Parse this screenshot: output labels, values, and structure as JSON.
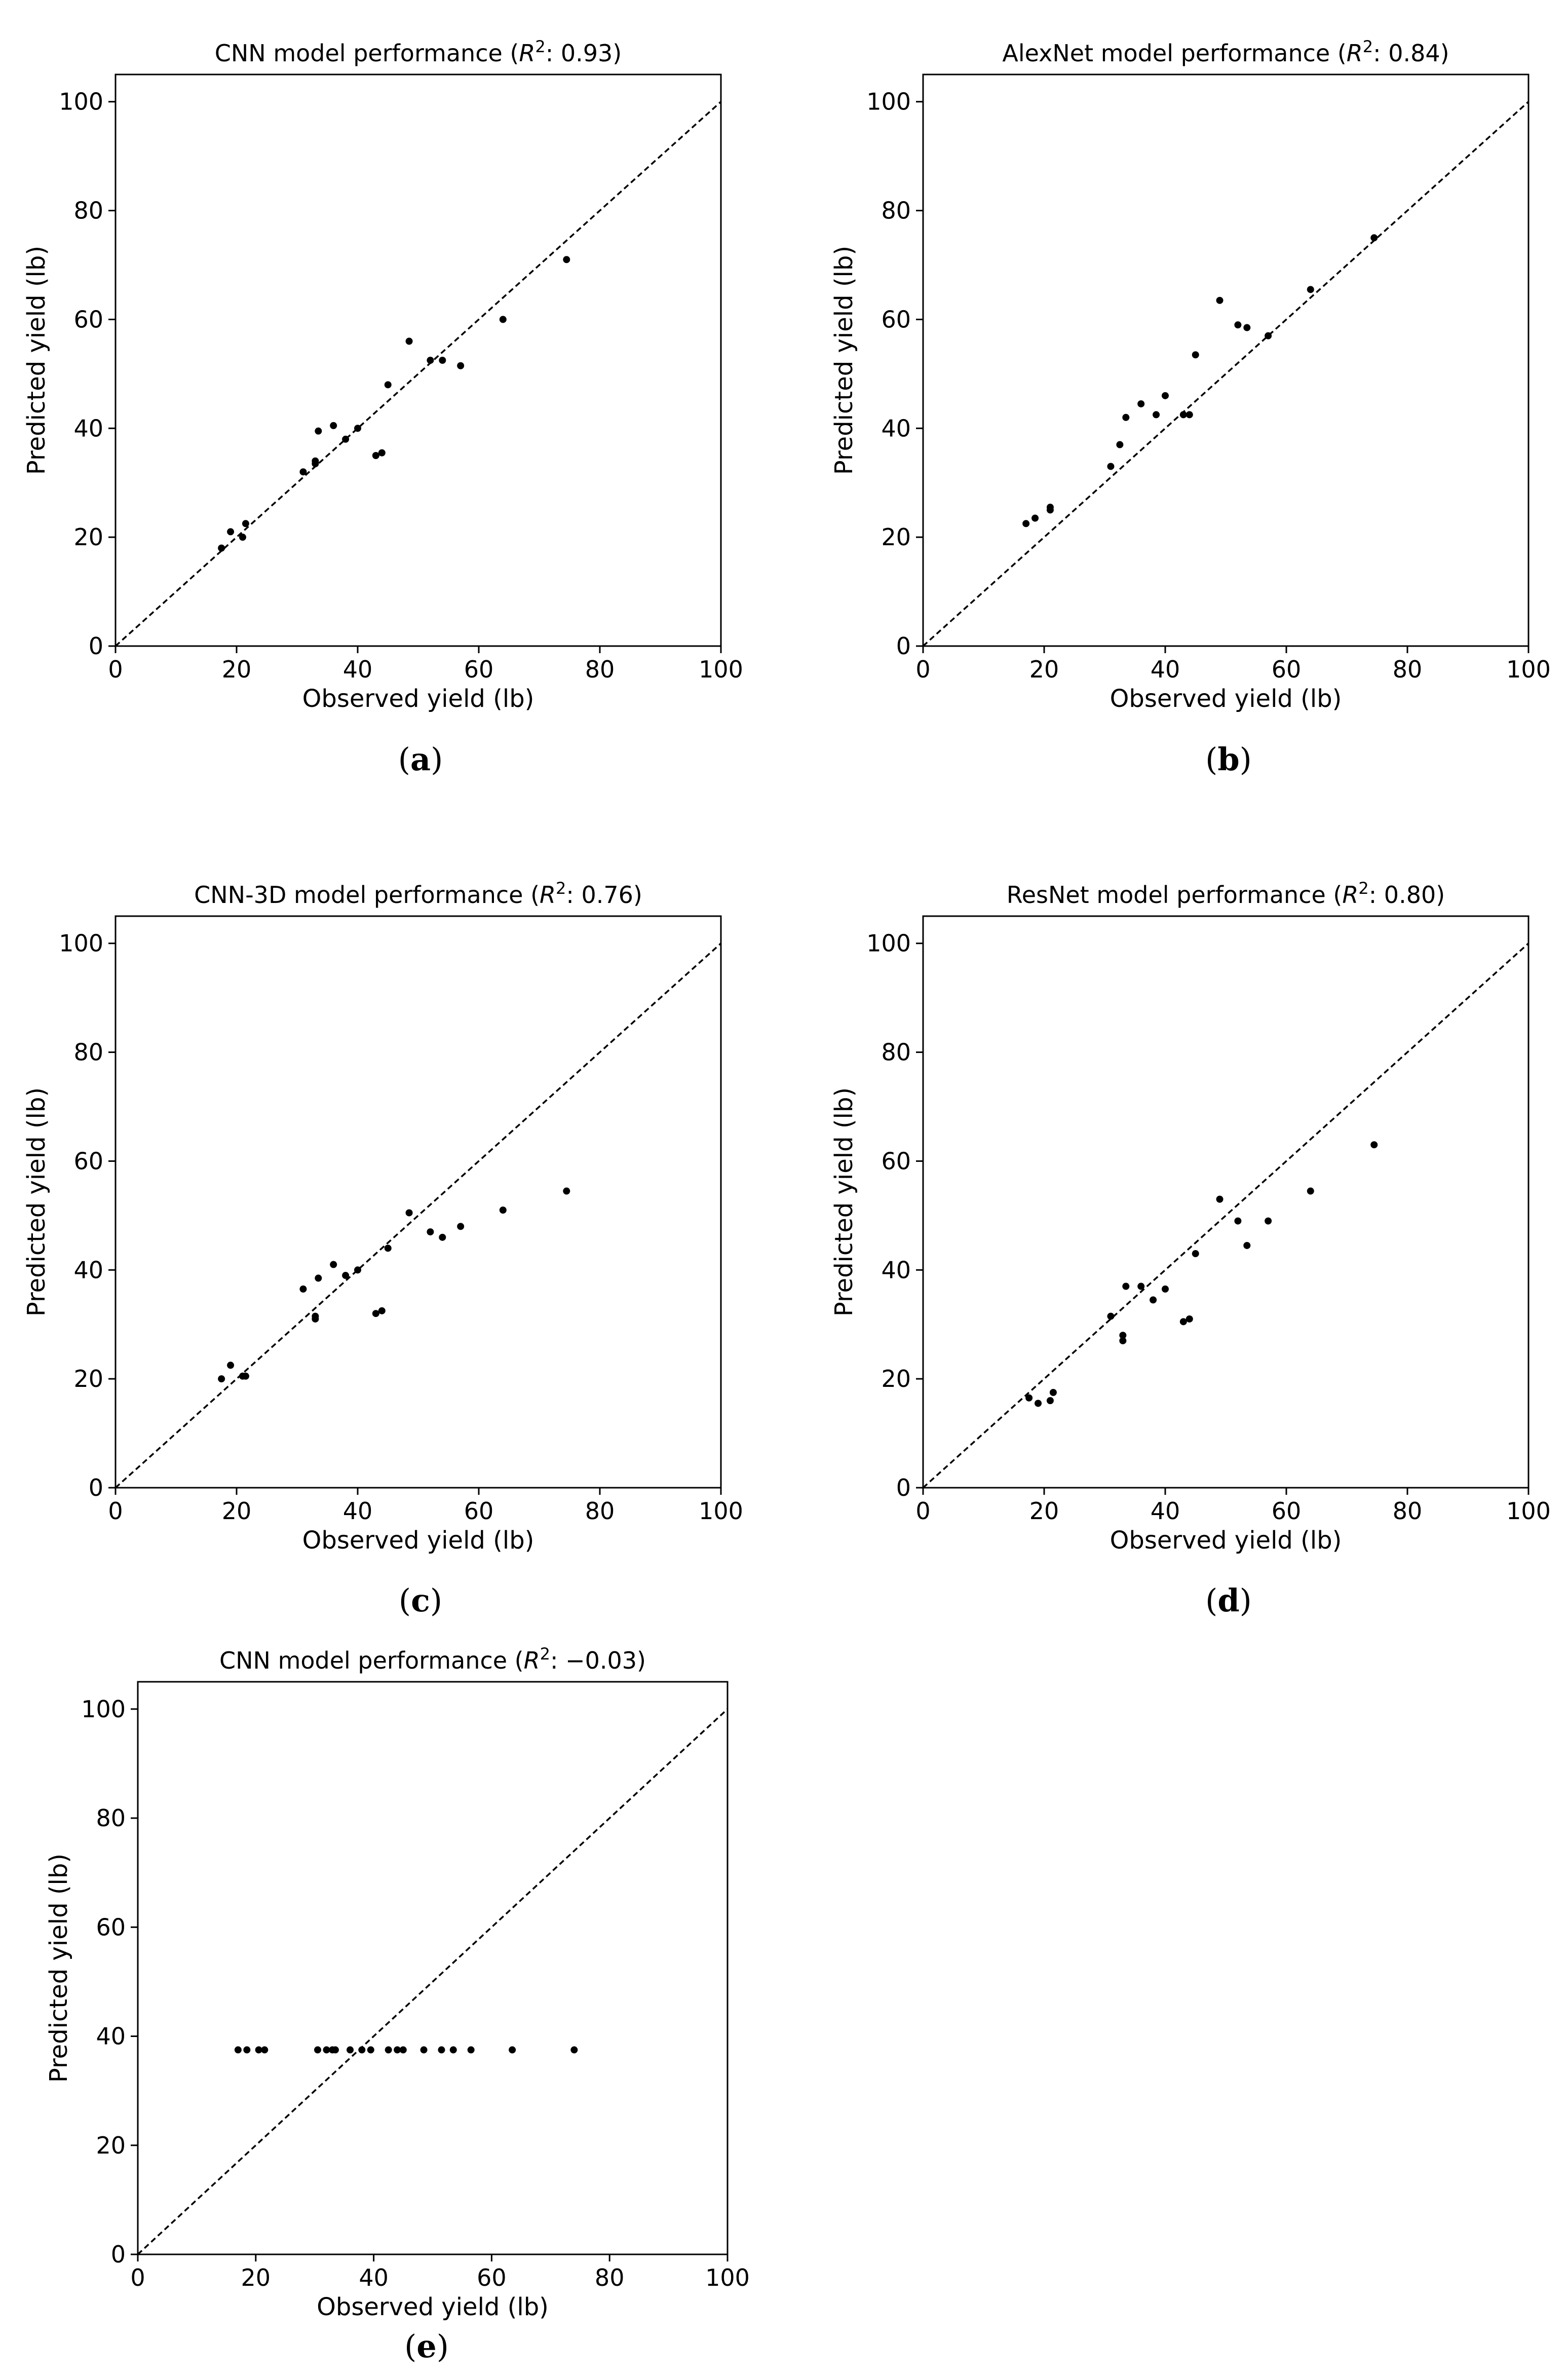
{
  "figure": {
    "captions": [
      "(a)",
      "(b)",
      "(c)",
      "(d)",
      "(e)"
    ]
  },
  "chart_data": [
    {
      "type": "scatter",
      "title": "CNN model performance (R²: 0.93)",
      "title_parts": {
        "model": "CNN",
        "r2": "0.93"
      },
      "xlabel": "Observed yield (lb)",
      "ylabel": "Predicted yield (lb)",
      "xlim": [
        0,
        100
      ],
      "ylim": [
        0,
        105
      ],
      "xticks": [
        0,
        20,
        40,
        60,
        80,
        100
      ],
      "yticks": [
        0,
        20,
        40,
        60,
        80,
        100
      ],
      "reference_line": "y = x (dashed)",
      "grid": false,
      "caption": "(a)",
      "x": [
        17.5,
        19,
        21,
        21.5,
        31,
        33,
        33,
        33.5,
        36,
        38,
        40,
        43,
        44,
        45,
        48.5,
        52,
        54,
        57,
        64,
        74.5
      ],
      "y": [
        18,
        21,
        20,
        22.5,
        32,
        33.5,
        34,
        39.5,
        40.5,
        38,
        40,
        35,
        35.5,
        48,
        56,
        52.5,
        52.5,
        51.5,
        60,
        71
      ]
    },
    {
      "type": "scatter",
      "title": "AlexNet model performance (R²: 0.84)",
      "title_parts": {
        "model": "AlexNet",
        "r2": "0.84"
      },
      "xlabel": "Observed yield (lb)",
      "ylabel": "Predicted yield (lb)",
      "xlim": [
        0,
        100
      ],
      "ylim": [
        0,
        105
      ],
      "xticks": [
        0,
        20,
        40,
        60,
        80,
        100
      ],
      "yticks": [
        0,
        20,
        40,
        60,
        80,
        100
      ],
      "reference_line": "y = x (dashed)",
      "grid": false,
      "caption": "(b)",
      "x": [
        17,
        18.5,
        21,
        21,
        31,
        32.5,
        33.5,
        36,
        38.5,
        40,
        43,
        44,
        45,
        49,
        52,
        53.5,
        57,
        64,
        74.5
      ],
      "y": [
        22.5,
        23.5,
        25,
        25.5,
        33,
        37,
        42,
        44.5,
        42.5,
        46,
        42.5,
        42.5,
        53.5,
        63.5,
        59,
        58.5,
        57,
        65.5,
        75
      ]
    },
    {
      "type": "scatter",
      "title": "CNN-3D model performance (R²: 0.76)",
      "title_parts": {
        "model": "CNN-3D",
        "r2": "0.76"
      },
      "xlabel": "Observed yield (lb)",
      "ylabel": "Predicted yield (lb)",
      "xlim": [
        0,
        100
      ],
      "ylim": [
        0,
        105
      ],
      "xticks": [
        0,
        20,
        40,
        60,
        80,
        100
      ],
      "yticks": [
        0,
        20,
        40,
        60,
        80,
        100
      ],
      "reference_line": "y = x (dashed)",
      "grid": false,
      "caption": "(c)",
      "x": [
        17.5,
        19,
        21,
        21.5,
        31,
        33,
        33,
        33.5,
        36,
        38,
        40,
        43,
        44,
        45,
        48.5,
        52,
        54,
        57,
        64,
        74.5
      ],
      "y": [
        20,
        22.5,
        20.5,
        20.5,
        36.5,
        31.5,
        31,
        38.5,
        41,
        39,
        40,
        32,
        32.5,
        44,
        50.5,
        47,
        46,
        48,
        51,
        54.5
      ]
    },
    {
      "type": "scatter",
      "title": "ResNet model performance (R²: 0.80)",
      "title_parts": {
        "model": "ResNet",
        "r2": "0.80"
      },
      "xlabel": "Observed yield (lb)",
      "ylabel": "Predicted yield (lb)",
      "xlim": [
        0,
        100
      ],
      "ylim": [
        0,
        105
      ],
      "xticks": [
        0,
        20,
        40,
        60,
        80,
        100
      ],
      "yticks": [
        0,
        20,
        40,
        60,
        80,
        100
      ],
      "reference_line": "y = x (dashed)",
      "grid": false,
      "caption": "(d)",
      "x": [
        17.5,
        19,
        21,
        21.5,
        31,
        33,
        33,
        33.5,
        36,
        38,
        40,
        43,
        44,
        45,
        49,
        52,
        53.5,
        57,
        64,
        74.5
      ],
      "y": [
        16.5,
        15.5,
        16,
        17.5,
        31.5,
        28,
        27,
        37,
        37,
        34.5,
        36.5,
        30.5,
        31,
        43,
        53,
        49,
        44.5,
        49,
        54.5,
        63
      ]
    },
    {
      "type": "scatter",
      "title": "CNN model performance (R²: −0.03)",
      "title_parts": {
        "model": "CNN",
        "r2": "−0.03"
      },
      "xlabel": "Observed yield (lb)",
      "ylabel": "Predicted yield (lb)",
      "xlim": [
        0,
        100
      ],
      "ylim": [
        0,
        105
      ],
      "xticks": [
        0,
        20,
        40,
        60,
        80,
        100
      ],
      "yticks": [
        0,
        20,
        40,
        60,
        80,
        100
      ],
      "reference_line": "y = x (dashed)",
      "grid": false,
      "caption": "(e)",
      "x": [
        17,
        18.5,
        20.5,
        21.5,
        30.5,
        32,
        33,
        33.5,
        36,
        38,
        39.5,
        42.5,
        44,
        45,
        48.5,
        51.5,
        53.5,
        56.5,
        63.5,
        74
      ],
      "y": [
        37.5,
        37.5,
        37.5,
        37.5,
        37.5,
        37.5,
        37.5,
        37.5,
        37.5,
        37.5,
        37.5,
        37.5,
        37.5,
        37.5,
        37.5,
        37.5,
        37.5,
        37.5,
        37.5,
        37.5
      ]
    }
  ]
}
